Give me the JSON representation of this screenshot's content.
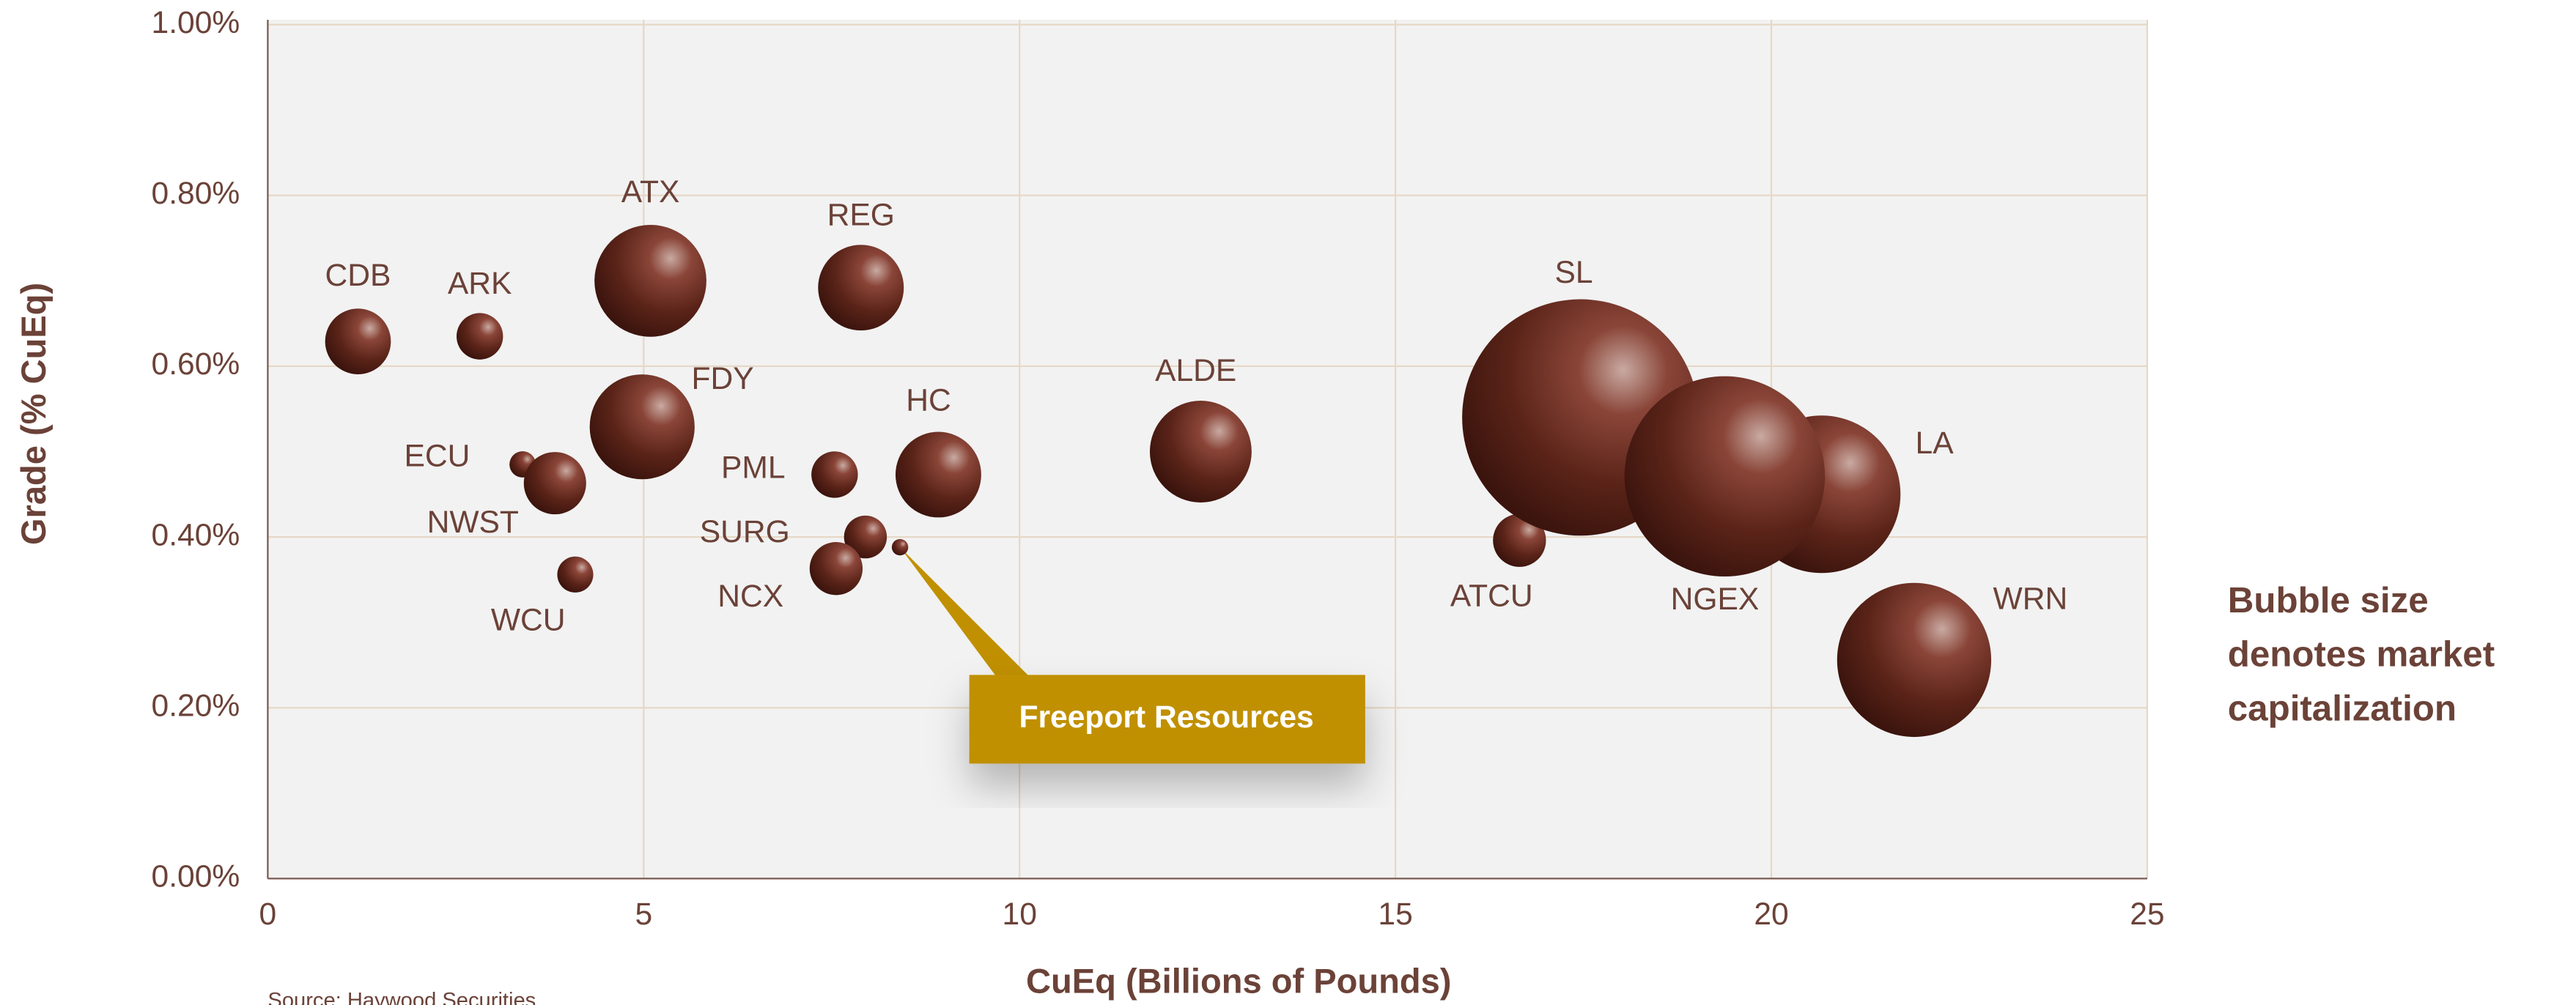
{
  "chart_data": {
    "type": "scatter",
    "x_label": "CuEq (Billions of Pounds)",
    "y_label": "Grade (% CuEq)",
    "note": [
      "Bubble size",
      "denotes market",
      "capitalization"
    ],
    "source": "Source:  Haywood Securities",
    "xlim": [
      0,
      25
    ],
    "xticks": [
      0,
      5,
      10,
      15,
      20,
      25
    ],
    "ylim": [
      0,
      1
    ],
    "yticks": [
      {
        "value": 0,
        "label": "0.00%"
      },
      {
        "value": 0.2,
        "label": "0.20%"
      },
      {
        "value": 0.4,
        "label": "0.40%"
      },
      {
        "value": 0.6,
        "label": "0.60%"
      },
      {
        "value": 0.8,
        "label": "0.80%"
      },
      {
        "value": 1,
        "label": "1.00%"
      }
    ],
    "grid": true,
    "series": [
      {
        "color": "#5a2318",
        "labels": [
          "CDB",
          "ARK",
          "ATX",
          "REG",
          "FDY",
          "ECU",
          "NWST",
          "WCU",
          "PML",
          "HC",
          "SURG",
          "NCX",
          "Freeport Resources",
          "ALDE",
          "ATCU",
          "SL",
          "LA",
          "NGEX",
          "WRN"
        ],
        "x": [
          1.2,
          2.82,
          5.09,
          7.89,
          4.98,
          3.39,
          3.82,
          4.09,
          7.54,
          8.92,
          7.95,
          7.56,
          8.41,
          12.41,
          16.65,
          17.46,
          20.67,
          19.38,
          21.9
        ],
        "values": [
          0.629,
          0.635,
          0.7,
          0.692,
          0.529,
          0.485,
          0.463,
          0.356,
          0.473,
          0.473,
          0.4,
          0.363,
          0.388,
          0.5,
          0.396,
          0.54,
          0.45,
          0.471,
          0.256
        ],
        "sizes": [
          4,
          2,
          11.6,
          6.8,
          10.2,
          0.64,
          3.6,
          1.2,
          2,
          6.8,
          1.7,
          2.6,
          0.25,
          9.6,
          2.6,
          51.8,
          23,
          37.2,
          22
        ]
      }
    ]
  }
}
